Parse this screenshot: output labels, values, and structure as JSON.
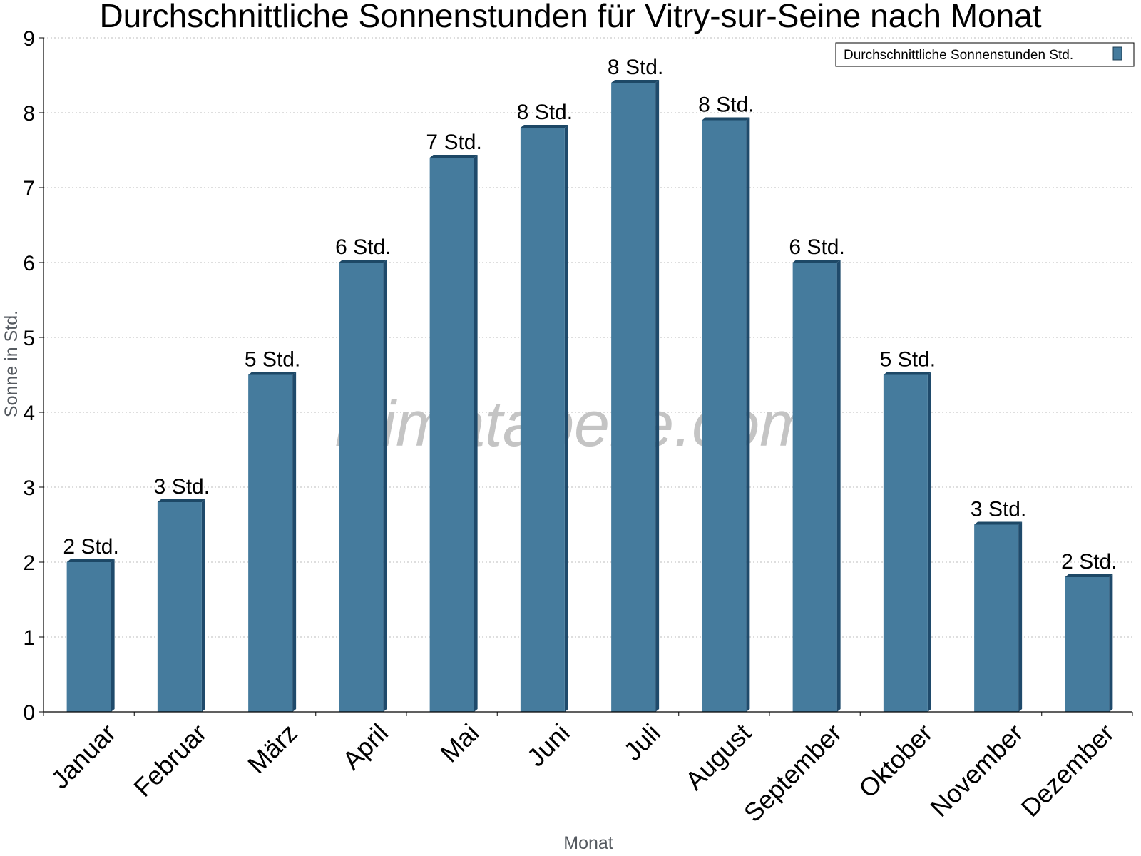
{
  "chart_data": {
    "type": "bar",
    "title": "Durchschnittliche Sonnenstunden für Vitry-sur-Seine nach Monat",
    "xlabel": "Monat",
    "ylabel": "Sonne in Std.",
    "ylim": [
      0,
      9
    ],
    "yticks": [
      "0",
      "1",
      "2",
      "3",
      "4",
      "5",
      "6",
      "7",
      "8",
      "9"
    ],
    "grid": true,
    "legend_position": "top-right",
    "categories": [
      "Januar",
      "Februar",
      "März",
      "April",
      "Mai",
      "Juni",
      "Juli",
      "August",
      "September",
      "Oktober",
      "November",
      "Dezember"
    ],
    "series": [
      {
        "name": "Durchschnittliche Sonnenstunden Std.",
        "color": "#457b9d",
        "values": [
          2.0,
          2.8,
          4.5,
          6.0,
          7.4,
          7.8,
          8.4,
          7.9,
          6.0,
          4.5,
          2.5,
          1.8
        ],
        "labels": [
          "2 Std.",
          "3 Std.",
          "5 Std.",
          "6 Std.",
          "7 Std.",
          "8 Std.",
          "8 Std.",
          "8 Std.",
          "6 Std.",
          "5 Std.",
          "3 Std.",
          "2 Std."
        ]
      }
    ],
    "watermark": "klimatabelle.com"
  }
}
